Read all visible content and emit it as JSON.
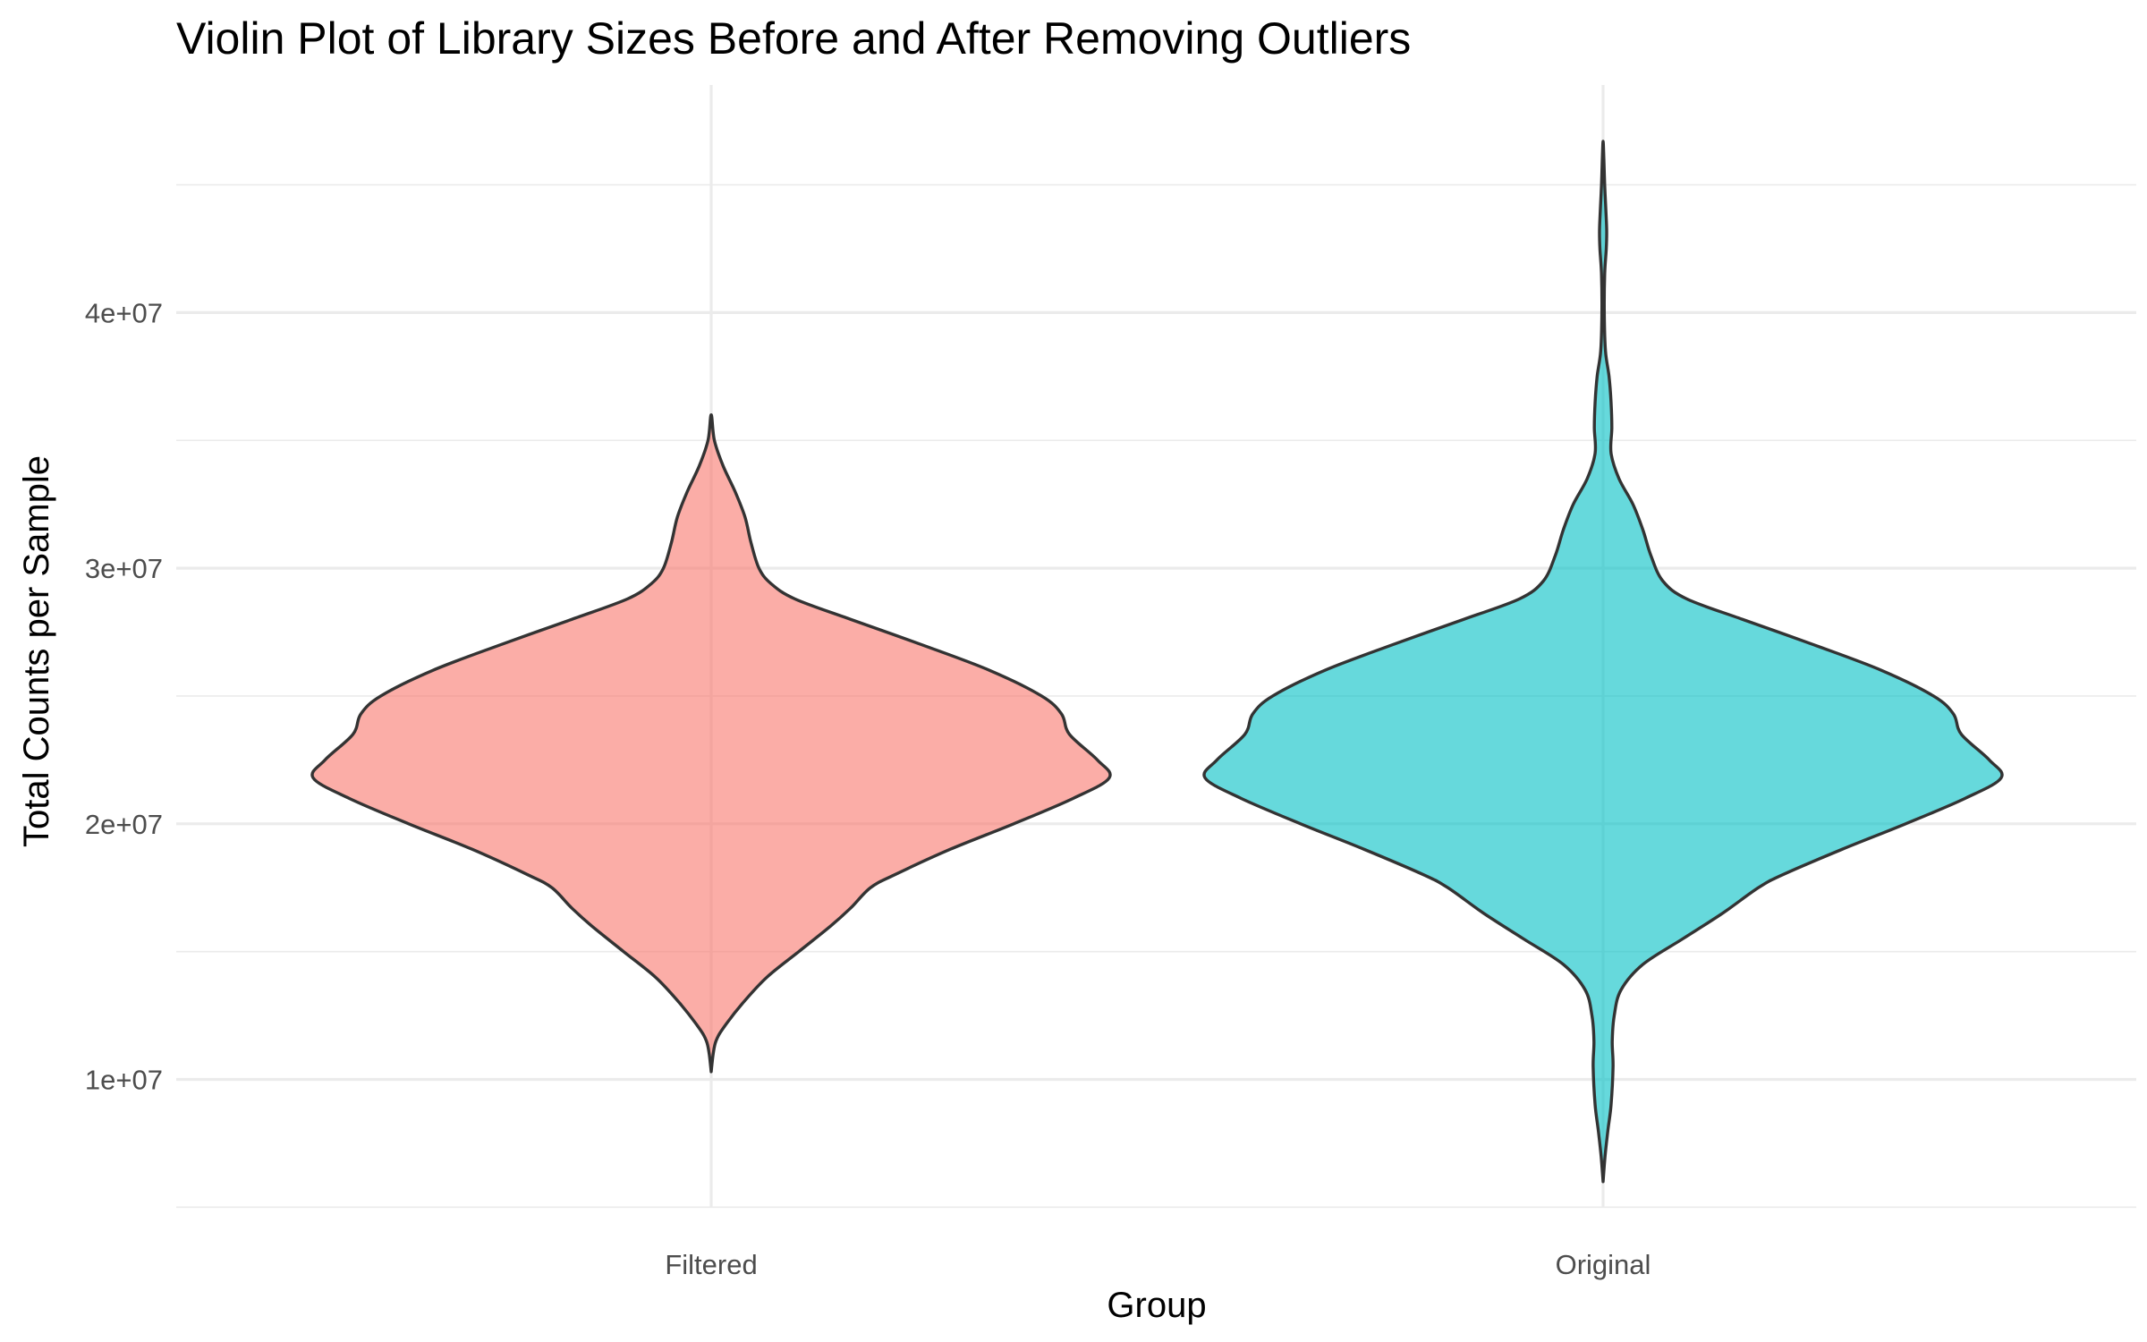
{
  "chart_data": {
    "type": "violin",
    "title": "Violin Plot of Library Sizes Before and After Removing Outliers",
    "xlabel": "Group",
    "ylabel": "Total Counts per Sample",
    "categories": [
      "Filtered",
      "Original"
    ],
    "ylim": [
      5000000,
      47000000
    ],
    "y_ticks": [
      {
        "value": 10000000,
        "label": "1e+07"
      },
      {
        "value": 20000000,
        "label": "2e+07"
      },
      {
        "value": 30000000,
        "label": "3e+07"
      },
      {
        "value": 40000000,
        "label": "4e+07"
      }
    ],
    "y_minor_ticks": [
      5000000,
      15000000,
      25000000,
      35000000,
      45000000
    ],
    "grid": true,
    "legend": "none",
    "series": [
      {
        "category": "Filtered",
        "color": "#F8766D",
        "y_min": 10300000,
        "y_max": 36000000,
        "density_profile": [
          [
            10300000,
            0.0
          ],
          [
            11000000,
            0.005
          ],
          [
            11500000,
            0.012
          ],
          [
            12000000,
            0.03
          ],
          [
            13000000,
            0.08
          ],
          [
            14000000,
            0.14
          ],
          [
            15000000,
            0.22
          ],
          [
            16000000,
            0.3
          ],
          [
            16700000,
            0.35
          ],
          [
            17500000,
            0.4
          ],
          [
            18000000,
            0.46
          ],
          [
            19000000,
            0.6
          ],
          [
            20000000,
            0.76
          ],
          [
            21000000,
            0.91
          ],
          [
            21800000,
            1.0
          ],
          [
            22500000,
            0.97
          ],
          [
            23500000,
            0.9
          ],
          [
            24300000,
            0.88
          ],
          [
            25000000,
            0.83
          ],
          [
            26000000,
            0.7
          ],
          [
            27000000,
            0.53
          ],
          [
            28000000,
            0.35
          ],
          [
            28800000,
            0.21
          ],
          [
            29400000,
            0.15
          ],
          [
            30000000,
            0.12
          ],
          [
            31000000,
            0.1
          ],
          [
            32000000,
            0.085
          ],
          [
            33000000,
            0.06
          ],
          [
            34000000,
            0.03
          ],
          [
            35000000,
            0.008
          ],
          [
            36000000,
            0.0
          ]
        ]
      },
      {
        "category": "Original",
        "color": "#00BFC4",
        "y_min": 6000000,
        "y_max": 46700000,
        "density_profile": [
          [
            6000000,
            0.0
          ],
          [
            7000000,
            0.005
          ],
          [
            8000000,
            0.012
          ],
          [
            9000000,
            0.02
          ],
          [
            10500000,
            0.025
          ],
          [
            11500000,
            0.023
          ],
          [
            12500000,
            0.028
          ],
          [
            13500000,
            0.045
          ],
          [
            14500000,
            0.1
          ],
          [
            15500000,
            0.2
          ],
          [
            16500000,
            0.3
          ],
          [
            17500000,
            0.39
          ],
          [
            18000000,
            0.45
          ],
          [
            19000000,
            0.6
          ],
          [
            20000000,
            0.76
          ],
          [
            21000000,
            0.91
          ],
          [
            21800000,
            1.0
          ],
          [
            22500000,
            0.97
          ],
          [
            23500000,
            0.9
          ],
          [
            24300000,
            0.88
          ],
          [
            25000000,
            0.83
          ],
          [
            26000000,
            0.7
          ],
          [
            27000000,
            0.53
          ],
          [
            28000000,
            0.35
          ],
          [
            28800000,
            0.21
          ],
          [
            29500000,
            0.15
          ],
          [
            30500000,
            0.12
          ],
          [
            31500000,
            0.1
          ],
          [
            32500000,
            0.075
          ],
          [
            33500000,
            0.04
          ],
          [
            34500000,
            0.02
          ],
          [
            35500000,
            0.022
          ],
          [
            36500000,
            0.02
          ],
          [
            37500000,
            0.015
          ],
          [
            38500000,
            0.006
          ],
          [
            40000000,
            0.003
          ],
          [
            41500000,
            0.004
          ],
          [
            42500000,
            0.008
          ],
          [
            43200000,
            0.009
          ],
          [
            44000000,
            0.007
          ],
          [
            45000000,
            0.004
          ],
          [
            46000000,
            0.002
          ],
          [
            46700000,
            0.0
          ]
        ]
      }
    ]
  }
}
